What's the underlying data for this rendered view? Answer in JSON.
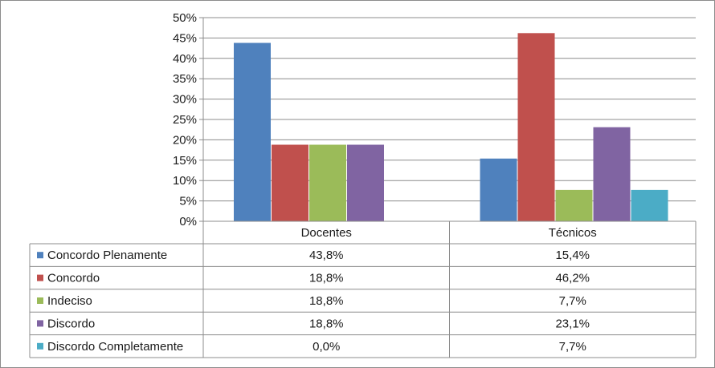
{
  "chart_data": {
    "type": "bar",
    "categories": [
      "Docentes",
      "Técnicos"
    ],
    "series": [
      {
        "name": "Concordo Plenamente",
        "color": "#4f81bd",
        "values": [
          43.8,
          15.4
        ],
        "labels": [
          "43,8%",
          "15,4%"
        ]
      },
      {
        "name": "Concordo",
        "color": "#c0504d",
        "values": [
          18.8,
          46.2
        ],
        "labels": [
          "18,8%",
          "46,2%"
        ]
      },
      {
        "name": "Indeciso",
        "color": "#9bbb59",
        "values": [
          18.8,
          7.7
        ],
        "labels": [
          "18,8%",
          "7,7%"
        ]
      },
      {
        "name": "Discordo",
        "color": "#8064a2",
        "values": [
          18.8,
          23.1
        ],
        "labels": [
          "18,8%",
          "23,1%"
        ]
      },
      {
        "name": "Discordo Completamente",
        "color": "#4bacc6",
        "values": [
          0.0,
          7.7
        ],
        "labels": [
          "0,0%",
          "7,7%"
        ]
      }
    ],
    "ylim": [
      0,
      50
    ],
    "yticks": [
      0,
      5,
      10,
      15,
      20,
      25,
      30,
      35,
      40,
      45,
      50
    ],
    "ytick_labels": [
      "0%",
      "5%",
      "10%",
      "15%",
      "20%",
      "25%",
      "30%",
      "35%",
      "40%",
      "45%",
      "50%"
    ],
    "grid": true,
    "legend": "data-table",
    "title": "",
    "xlabel": "",
    "ylabel": ""
  }
}
